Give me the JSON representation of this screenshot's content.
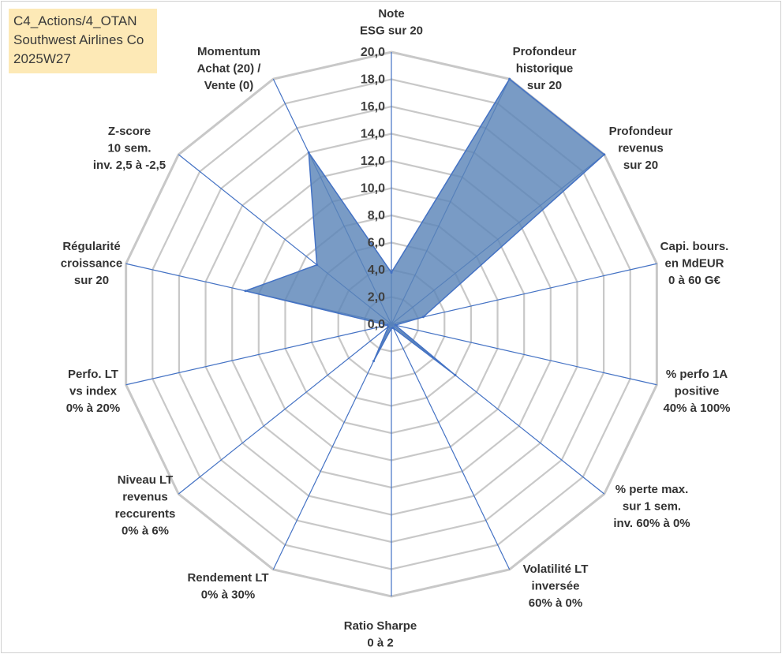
{
  "header": {
    "line1": "C4_Actions/4_OTAN",
    "line2": "Southwest Airlines Co",
    "line3": "2025W27"
  },
  "chart_data": {
    "type": "radar",
    "title": "",
    "rmin": 0,
    "rmax": 20,
    "ticks": [
      "0,0",
      "2,0",
      "4,0",
      "6,0",
      "8,0",
      "10,0",
      "12,0",
      "14,0",
      "16,0",
      "18,0",
      "20,0"
    ],
    "axes": [
      {
        "label": [
          "Note",
          "ESG sur 20"
        ],
        "value": 3.8
      },
      {
        "label": [
          "Profondeur",
          "historique",
          "sur 20"
        ],
        "value": 20.0
      },
      {
        "label": [
          "Profondeur",
          "revenus",
          "sur 20"
        ],
        "value": 20.0
      },
      {
        "label": [
          "Capi. bours.",
          "en MdEUR",
          "0 à 60 G€"
        ],
        "value": 2.4
      },
      {
        "label": [
          "% perfo 1A",
          "positive",
          "40% à 100%"
        ],
        "value": 0.3
      },
      {
        "label": [
          "% perte max.",
          "sur 1 sem.",
          "inv. 60% à 0%"
        ],
        "value": 6.0
      },
      {
        "label": [
          "Volatilité LT",
          "inversée",
          "60% à 0%"
        ],
        "value": 0.3
      },
      {
        "label": [
          "Ratio Sharpe",
          "0 à 2"
        ],
        "value": 0.3
      },
      {
        "label": [
          "Rendement LT",
          "0% à 30%"
        ],
        "value": 3.0
      },
      {
        "label": [
          "Niveau LT",
          "revenus",
          "reccurents",
          "0% à 6%"
        ],
        "value": 0.3
      },
      {
        "label": [
          "Perfo. LT",
          "vs index",
          "0% à 20%"
        ],
        "value": 0.3
      },
      {
        "label": [
          "Régularité",
          "croissance",
          "sur 20"
        ],
        "value": 11.0
      },
      {
        "label": [
          "Z-score",
          "10 sem.",
          "inv. 2,5 à -2,5"
        ],
        "value": 7.0
      },
      {
        "label": [
          "Momentum",
          "Achat (20) /",
          "Vente (0)"
        ],
        "value": 14.0
      }
    ],
    "colors": {
      "grid": "#c8c8c8",
      "spoke": "#4472c4",
      "fill": "#5b85b8",
      "stroke": "#4472c4"
    }
  }
}
